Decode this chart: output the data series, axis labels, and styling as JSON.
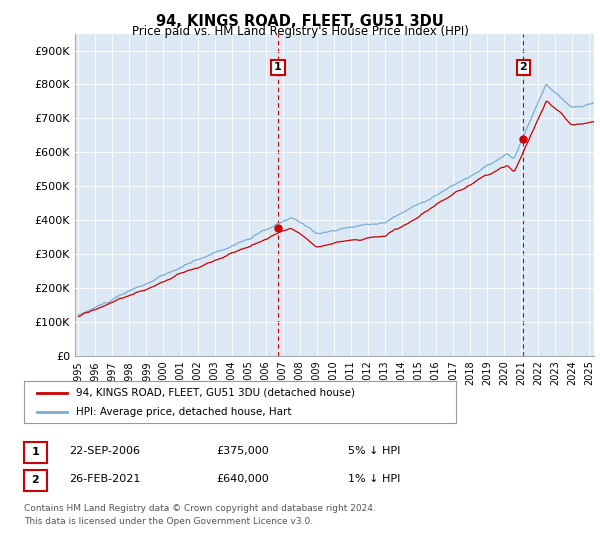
{
  "title": "94, KINGS ROAD, FLEET, GU51 3DU",
  "subtitle": "Price paid vs. HM Land Registry's House Price Index (HPI)",
  "ylabel_ticks": [
    "£0",
    "£100K",
    "£200K",
    "£300K",
    "£400K",
    "£500K",
    "£600K",
    "£700K",
    "£800K",
    "£900K"
  ],
  "ytick_values": [
    0,
    100000,
    200000,
    300000,
    400000,
    500000,
    600000,
    700000,
    800000,
    900000
  ],
  "ylim": [
    0,
    950000
  ],
  "xlim_start": 1994.8,
  "xlim_end": 2025.3,
  "hpi_color": "#7aadd4",
  "price_color": "#cc0000",
  "vline_color": "#cc0000",
  "annotation_box_color": "#cc0000",
  "sale1_x": 2006.73,
  "sale1_y": 375000,
  "sale1_label": "1",
  "sale2_x": 2021.15,
  "sale2_y": 640000,
  "sale2_label": "2",
  "legend_label1": "94, KINGS ROAD, FLEET, GU51 3DU (detached house)",
  "legend_label2": "HPI: Average price, detached house, Hart",
  "footnote_row1": "Contains HM Land Registry data © Crown copyright and database right 2024.",
  "footnote_row2": "This data is licensed under the Open Government Licence v3.0.",
  "table_row1_num": "1",
  "table_row1_date": "22-SEP-2006",
  "table_row1_price": "£375,000",
  "table_row1_hpi": "5% ↓ HPI",
  "table_row2_num": "2",
  "table_row2_date": "26-FEB-2021",
  "table_row2_price": "£640,000",
  "table_row2_hpi": "1% ↓ HPI",
  "background_color": "#ffffff",
  "chart_bg_color": "#dce9f5",
  "grid_color": "#ffffff"
}
